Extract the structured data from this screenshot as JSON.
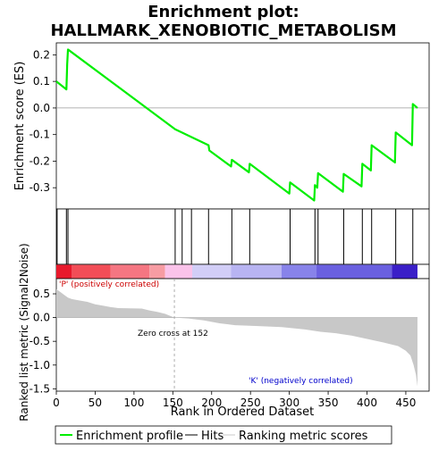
{
  "chart_data": {
    "type": "line",
    "title": "Enrichment plot:",
    "subtitle": "HALLMARK_XENOBIOTIC_METABOLISM",
    "xlabel": "Rank in Ordered Dataset",
    "ylabel_top": "Enrichment score (ES)",
    "ylabel_bottom": "Ranked list metric (Signal2Noise)",
    "xlim": [
      0,
      480
    ],
    "es_ylim": [
      -0.38,
      0.245
    ],
    "metric_ylim": [
      -1.55,
      0.82
    ],
    "es_yticks": [
      0.2,
      0.1,
      0.0,
      -0.1,
      -0.2,
      -0.3
    ],
    "es_ytick_labels": [
      "0.2",
      "0.1",
      "0.0",
      "-0.1",
      "-0.2",
      "-0.3"
    ],
    "metric_yticks": [
      0.5,
      0.0,
      -0.5,
      -1.0,
      -1.5
    ],
    "metric_ytick_labels": [
      "0.5",
      "0.0",
      "-0.5",
      "-1.0",
      "-1.5"
    ],
    "xticks": [
      0,
      50,
      100,
      150,
      200,
      250,
      300,
      350,
      400,
      450
    ],
    "xtick_labels": [
      "0",
      "50",
      "100",
      "150",
      "200",
      "250",
      "300",
      "350",
      "400",
      "450"
    ],
    "n_genes": 465,
    "zero_cross": 152,
    "es_profile": [
      [
        0,
        0.1
      ],
      [
        13,
        0.07
      ],
      [
        14,
        0.165
      ],
      [
        15,
        0.22
      ],
      [
        153,
        -0.08
      ],
      [
        196,
        -0.14
      ],
      [
        197,
        -0.16
      ],
      [
        225,
        -0.22
      ],
      [
        226,
        -0.195
      ],
      [
        248,
        -0.242
      ],
      [
        249,
        -0.21
      ],
      [
        300,
        -0.322
      ],
      [
        301,
        -0.28
      ],
      [
        332,
        -0.348
      ],
      [
        333,
        -0.29
      ],
      [
        336,
        -0.3
      ],
      [
        337,
        -0.245
      ],
      [
        369,
        -0.315
      ],
      [
        370,
        -0.248
      ],
      [
        393,
        -0.295
      ],
      [
        394,
        -0.21
      ],
      [
        405,
        -0.235
      ],
      [
        406,
        -0.14
      ],
      [
        436,
        -0.205
      ],
      [
        437,
        -0.092
      ],
      [
        458,
        -0.14
      ],
      [
        459,
        0.015
      ],
      [
        465,
        0.0
      ]
    ],
    "hits": [
      1,
      13,
      15,
      153,
      162,
      174,
      196,
      226,
      249,
      301,
      333,
      337,
      370,
      394,
      406,
      437,
      459
    ],
    "metric_curve": [
      [
        0,
        0.6
      ],
      [
        5,
        0.54
      ],
      [
        10,
        0.48
      ],
      [
        15,
        0.42
      ],
      [
        20,
        0.39
      ],
      [
        30,
        0.36
      ],
      [
        40,
        0.33
      ],
      [
        50,
        0.28
      ],
      [
        60,
        0.25
      ],
      [
        70,
        0.22
      ],
      [
        80,
        0.2
      ],
      [
        110,
        0.19
      ],
      [
        120,
        0.15
      ],
      [
        130,
        0.12
      ],
      [
        140,
        0.08
      ],
      [
        152,
        0.0
      ],
      [
        170,
        -0.02
      ],
      [
        190,
        -0.06
      ],
      [
        210,
        -0.12
      ],
      [
        230,
        -0.16
      ],
      [
        260,
        -0.18
      ],
      [
        290,
        -0.2
      ],
      [
        320,
        -0.25
      ],
      [
        340,
        -0.3
      ],
      [
        360,
        -0.33
      ],
      [
        380,
        -0.38
      ],
      [
        400,
        -0.45
      ],
      [
        420,
        -0.52
      ],
      [
        440,
        -0.6
      ],
      [
        450,
        -0.7
      ],
      [
        456,
        -0.8
      ],
      [
        460,
        -1.0
      ],
      [
        463,
        -1.2
      ],
      [
        465,
        -1.45
      ]
    ],
    "color_bar": [
      {
        "start": 0,
        "end": 20,
        "color": "#e8192c"
      },
      {
        "start": 20,
        "end": 70,
        "color": "#f24d57"
      },
      {
        "start": 70,
        "end": 120,
        "color": "#f57682"
      },
      {
        "start": 120,
        "end": 140,
        "color": "#f79ca3"
      },
      {
        "start": 140,
        "end": 175,
        "color": "#fbc3ea"
      },
      {
        "start": 175,
        "end": 225,
        "color": "#d2cef7"
      },
      {
        "start": 225,
        "end": 290,
        "color": "#b8b4f2"
      },
      {
        "start": 290,
        "end": 335,
        "color": "#8883ea"
      },
      {
        "start": 335,
        "end": 432,
        "color": "#6a60e0"
      },
      {
        "start": 432,
        "end": 465,
        "color": "#3a1fc8"
      }
    ],
    "annotations": {
      "positive": "'P' (positively correlated)",
      "negative": "'K' (negatively correlated)",
      "zero_cross": "Zero cross at 152"
    },
    "legend": [
      {
        "label": "Enrichment profile",
        "color": "#00ee00"
      },
      {
        "label": "Hits",
        "color": "#000000"
      },
      {
        "label": "Ranking metric scores",
        "color": "#c8c8c8"
      }
    ],
    "colors": {
      "profile": "#00ee00",
      "hits": "#000000",
      "metric_fill": "#c8c8c8",
      "zero_line": "#999999"
    }
  }
}
